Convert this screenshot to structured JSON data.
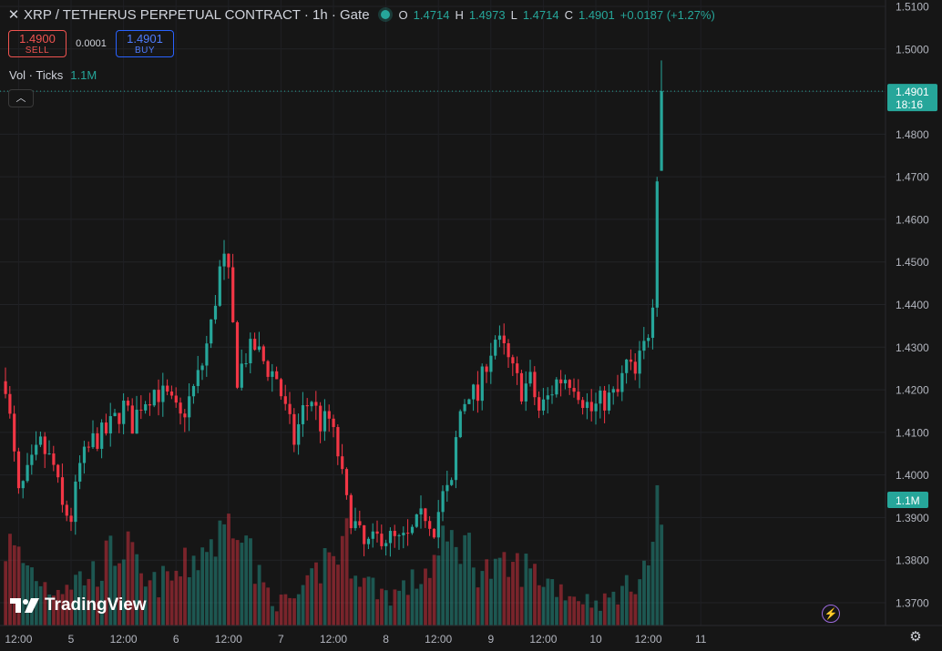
{
  "header": {
    "close_icon": "close-icon",
    "title": "XRP / TETHERUS PERPETUAL CONTRACT · 1h · Gate",
    "status_color": "#26a69a",
    "ohlc": {
      "o_label": "O",
      "o_value": "1.4714",
      "h_label": "H",
      "h_value": "1.4973",
      "l_label": "L",
      "l_value": "1.4714",
      "c_label": "C",
      "c_value": "1.4901",
      "change": "+0.0187 (+1.27%)"
    }
  },
  "trade": {
    "sell_price": "1.4900",
    "sell_label": "SELL",
    "spread": "0.0001",
    "buy_price": "1.4901",
    "buy_label": "BUY"
  },
  "volume": {
    "label": "Vol · Ticks",
    "value": "1.1M"
  },
  "branding": {
    "logo_text": "TradingView"
  },
  "chart_data": {
    "type": "candlestick",
    "up_color": "#26a69a",
    "down_color": "#f23645",
    "ylim": [
      1.366,
      1.5115
    ],
    "y_ticks": [
      1.51,
      1.5,
      1.49,
      1.48,
      1.47,
      1.46,
      1.45,
      1.44,
      1.43,
      1.42,
      1.41,
      1.4,
      1.39,
      1.38,
      1.37
    ],
    "y_tick_labels": [
      "1.5100",
      "1.5000",
      "1.4900",
      "1.4800",
      "1.4700",
      "1.4600",
      "1.4500",
      "1.4400",
      "1.4300",
      "1.4200",
      "1.4100",
      "1.4000",
      "1.3900",
      "1.3800",
      "1.3700"
    ],
    "x_ticks": [
      {
        "label": "12:00",
        "bar": 3
      },
      {
        "label": "5",
        "bar": 15
      },
      {
        "label": "12:00",
        "bar": 27
      },
      {
        "label": "6",
        "bar": 39
      },
      {
        "label": "12:00",
        "bar": 51
      },
      {
        "label": "7",
        "bar": 63
      },
      {
        "label": "12:00",
        "bar": 75
      },
      {
        "label": "8",
        "bar": 87
      },
      {
        "label": "12:00",
        "bar": 99
      },
      {
        "label": "9",
        "bar": 111
      },
      {
        "label": "12:00",
        "bar": 123
      },
      {
        "label": "10",
        "bar": 135
      },
      {
        "label": "12:00",
        "bar": 147
      },
      {
        "label": "11",
        "bar": 159
      }
    ],
    "last_price": {
      "value": "1.4901",
      "countdown": "18:16"
    },
    "last_volume_label": "1.1M",
    "anchors": [
      [
        0,
        1.422
      ],
      [
        3,
        1.395
      ],
      [
        8,
        1.407
      ],
      [
        11,
        1.402
      ],
      [
        13,
        1.392
      ],
      [
        15,
        1.39
      ],
      [
        17,
        1.402
      ],
      [
        20,
        1.408
      ],
      [
        23,
        1.41
      ],
      [
        27,
        1.416
      ],
      [
        29,
        1.412
      ],
      [
        31,
        1.417
      ],
      [
        34,
        1.42
      ],
      [
        37,
        1.418
      ],
      [
        40,
        1.413
      ],
      [
        43,
        1.42
      ],
      [
        45,
        1.426
      ],
      [
        47,
        1.435
      ],
      [
        49,
        1.448
      ],
      [
        50,
        1.45
      ],
      [
        51,
        1.446
      ],
      [
        53,
        1.423
      ],
      [
        55,
        1.428
      ],
      [
        57,
        1.43
      ],
      [
        60,
        1.425
      ],
      [
        62,
        1.423
      ],
      [
        64,
        1.415
      ],
      [
        66,
        1.408
      ],
      [
        68,
        1.415
      ],
      [
        70,
        1.418
      ],
      [
        72,
        1.412
      ],
      [
        74,
        1.413
      ],
      [
        76,
        1.405
      ],
      [
        78,
        1.393
      ],
      [
        80,
        1.388
      ],
      [
        82,
        1.383
      ],
      [
        84,
        1.384
      ],
      [
        86,
        1.386
      ],
      [
        88,
        1.385
      ],
      [
        90,
        1.384
      ],
      [
        92,
        1.385
      ],
      [
        94,
        1.388
      ],
      [
        96,
        1.391
      ],
      [
        98,
        1.388
      ],
      [
        100,
        1.395
      ],
      [
        102,
        1.397
      ],
      [
        103,
        1.408
      ],
      [
        104,
        1.415
      ],
      [
        106,
        1.42
      ],
      [
        108,
        1.418
      ],
      [
        110,
        1.427
      ],
      [
        112,
        1.432
      ],
      [
        114,
        1.429
      ],
      [
        116,
        1.424
      ],
      [
        118,
        1.42
      ],
      [
        120,
        1.422
      ],
      [
        122,
        1.415
      ],
      [
        124,
        1.418
      ],
      [
        126,
        1.422
      ],
      [
        128,
        1.423
      ],
      [
        130,
        1.422
      ],
      [
        132,
        1.418
      ],
      [
        134,
        1.415
      ],
      [
        136,
        1.417
      ],
      [
        138,
        1.418
      ],
      [
        140,
        1.419
      ],
      [
        142,
        1.426
      ],
      [
        144,
        1.423
      ],
      [
        145,
        1.427
      ],
      [
        146,
        1.43
      ],
      [
        147,
        1.434
      ],
      [
        148,
        1.442
      ],
      [
        149,
        1.4714
      ],
      [
        150,
        1.4901
      ]
    ],
    "volume_profile": [
      [
        0,
        0.55
      ],
      [
        10,
        0.25
      ],
      [
        20,
        0.35
      ],
      [
        27,
        0.55
      ],
      [
        32,
        0.25
      ],
      [
        40,
        0.35
      ],
      [
        46,
        0.55
      ],
      [
        50,
        0.6
      ],
      [
        53,
        0.9
      ],
      [
        57,
        0.35
      ],
      [
        62,
        0.15
      ],
      [
        68,
        0.2
      ],
      [
        73,
        0.45
      ],
      [
        78,
        0.55
      ],
      [
        82,
        0.3
      ],
      [
        88,
        0.2
      ],
      [
        94,
        0.3
      ],
      [
        100,
        0.5
      ],
      [
        104,
        0.6
      ],
      [
        108,
        0.4
      ],
      [
        112,
        0.35
      ],
      [
        118,
        0.4
      ],
      [
        124,
        0.3
      ],
      [
        130,
        0.2
      ],
      [
        136,
        0.15
      ],
      [
        142,
        0.25
      ],
      [
        146,
        0.4
      ],
      [
        148,
        0.45
      ],
      [
        149,
        1.0
      ],
      [
        150,
        0.75
      ]
    ]
  }
}
